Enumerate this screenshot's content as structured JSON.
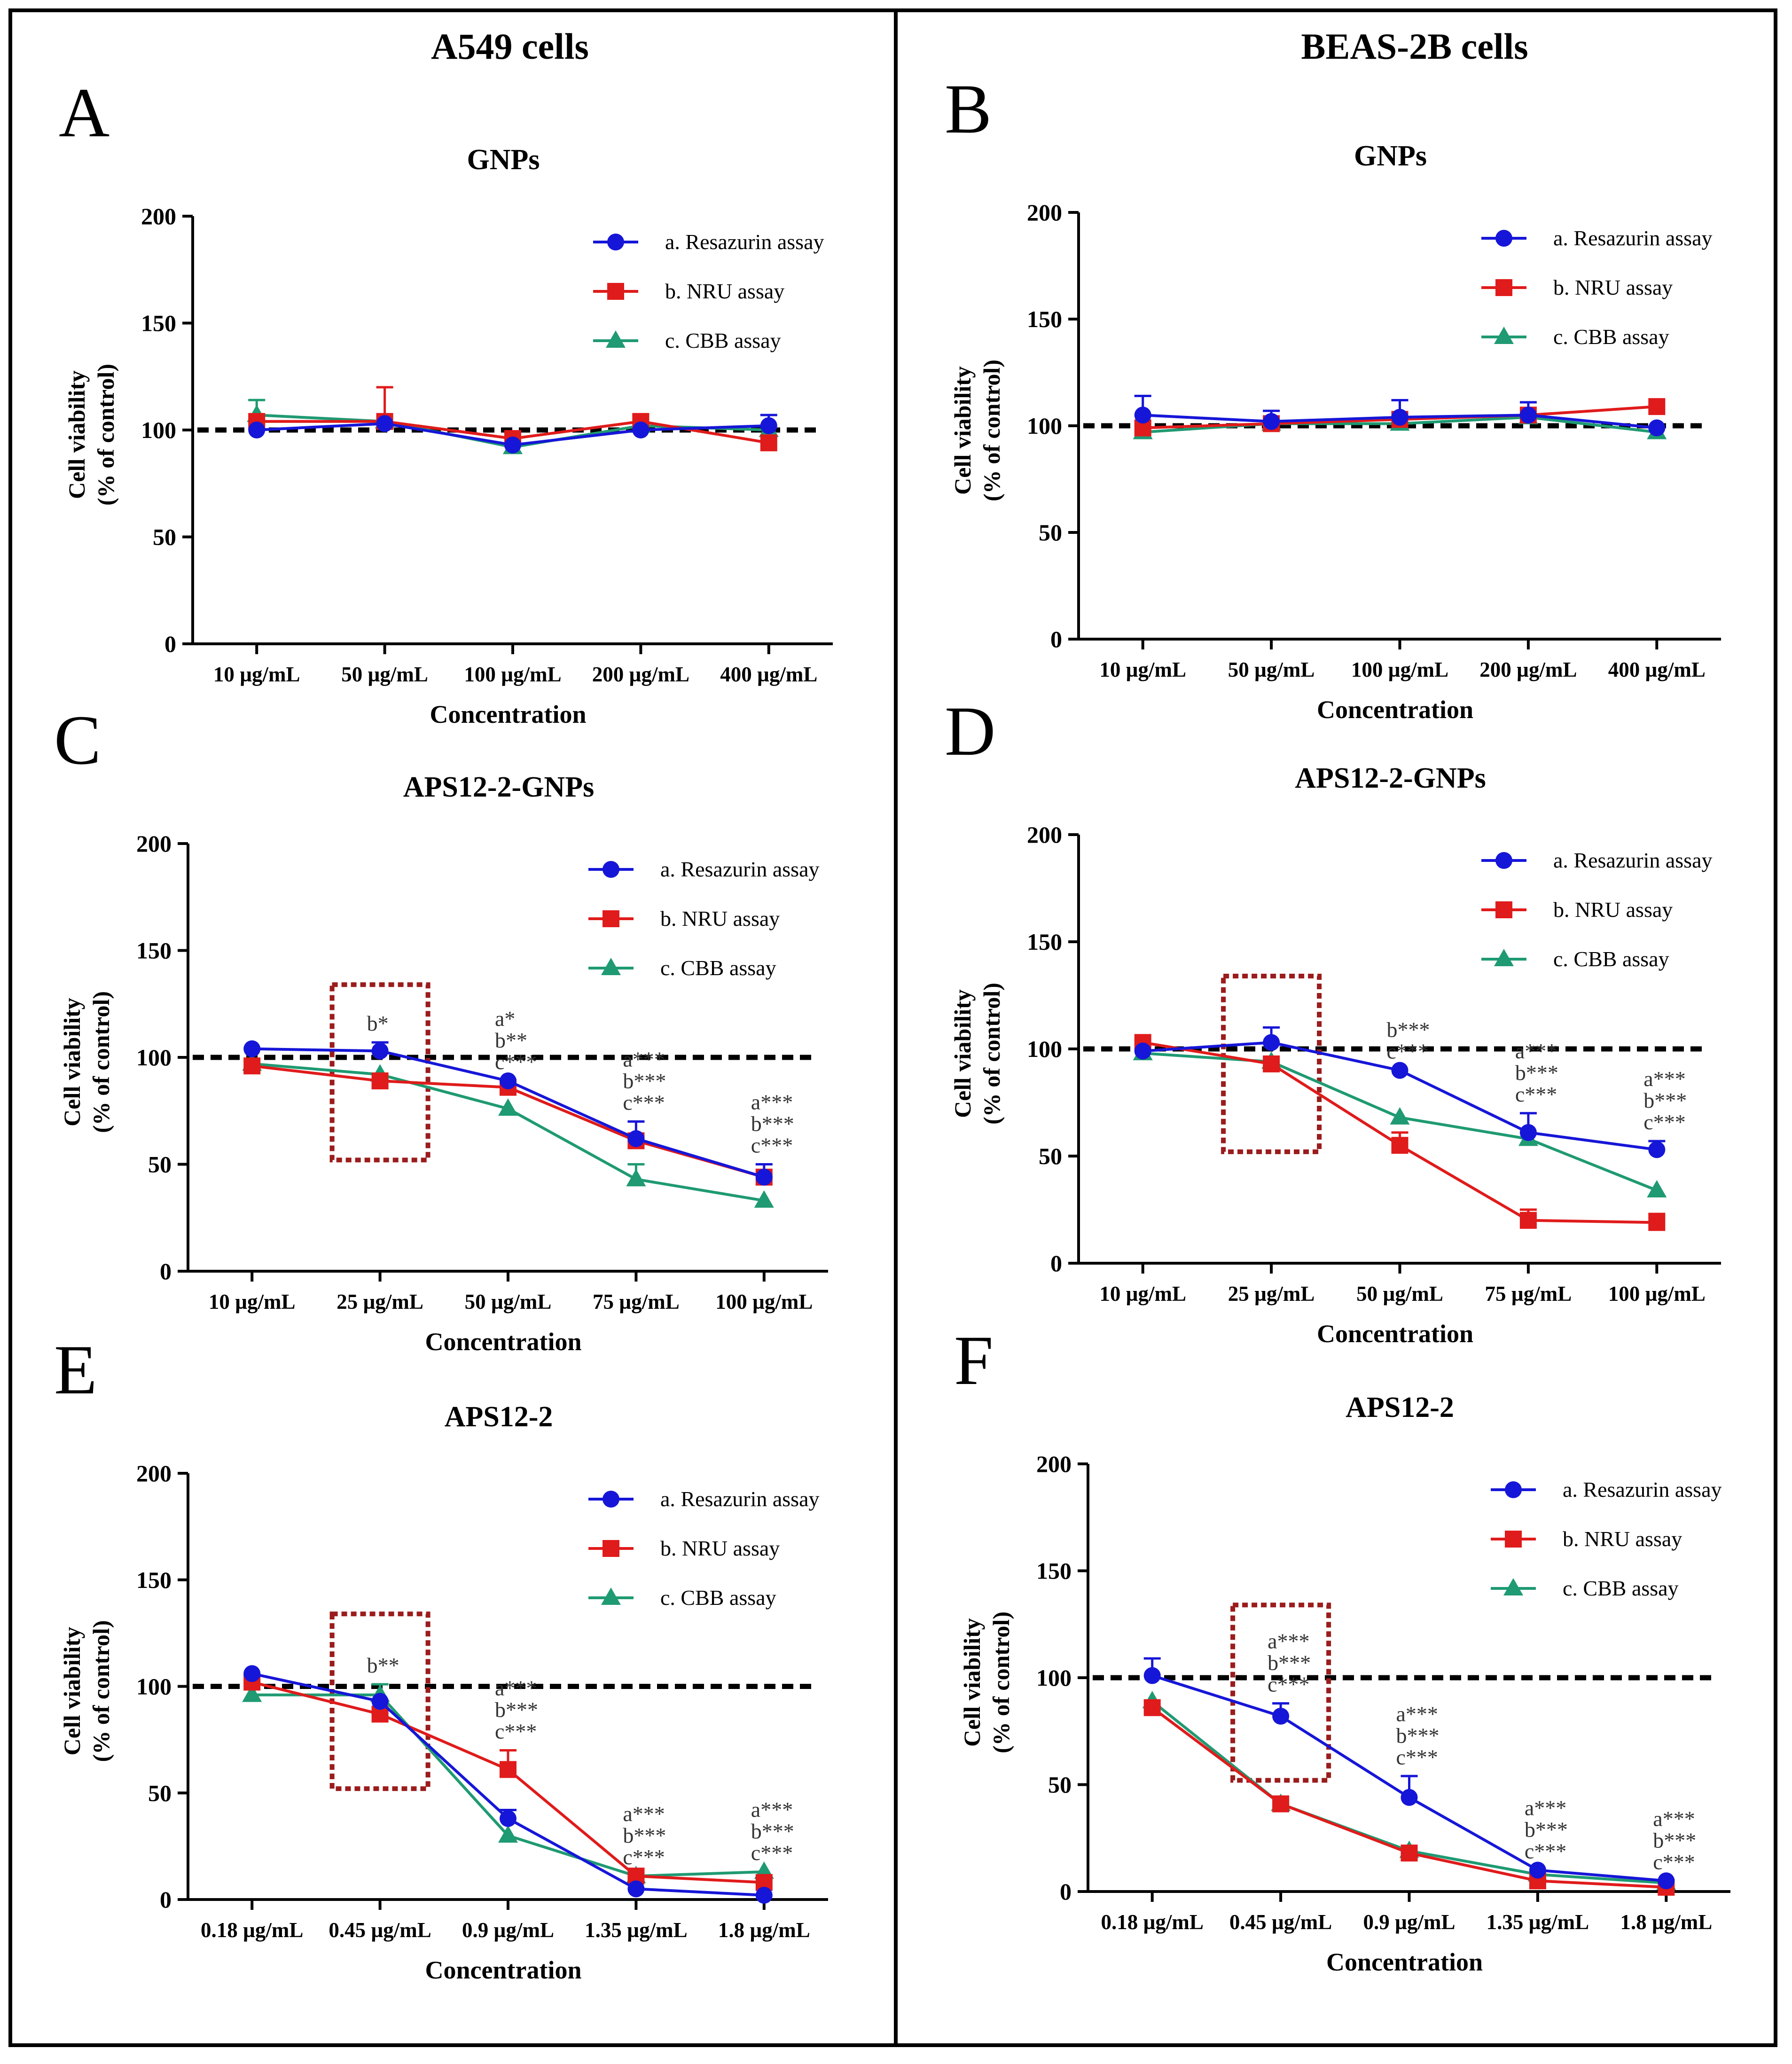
{
  "columns": [
    "A549 cells",
    "BEAS-2B cells"
  ],
  "colors": {
    "resazurin": "#1616d8",
    "nru": "#e01b1b",
    "cbb": "#1f9a72",
    "reference": "#000000",
    "box": "#9b1c1c",
    "frame": "#000000"
  },
  "chart_data": [
    {
      "panel": "A",
      "type": "line",
      "title": "GNPs",
      "xlabel": "Concentration",
      "ylabel": [
        "Cell viability",
        "(% of control)"
      ],
      "ylim": [
        0,
        200
      ],
      "yticks": [
        0,
        50,
        100,
        150,
        200
      ],
      "categories": [
        "10 µg/mL",
        "50 µg/mL",
        "100 µg/mL",
        "200 µg/mL",
        "400 µg/mL"
      ],
      "reference_line": 100,
      "series": [
        {
          "name": "a. Resazurin assay",
          "key": "resazurin",
          "marker": "circle",
          "values": [
            100,
            103,
            93,
            100,
            102
          ],
          "errors": [
            0,
            0,
            0,
            0,
            5
          ]
        },
        {
          "name": "b. NRU assay",
          "key": "nru",
          "marker": "square",
          "values": [
            104,
            104,
            96,
            104,
            94
          ],
          "errors": [
            0,
            16,
            0,
            3,
            0
          ]
        },
        {
          "name": "c. CBB assay",
          "key": "cbb",
          "marker": "triangle",
          "values": [
            107,
            104,
            92,
            102,
            100
          ],
          "errors": [
            7,
            0,
            0,
            0,
            0
          ]
        }
      ],
      "annotations": []
    },
    {
      "panel": "B",
      "type": "line",
      "title": "GNPs",
      "xlabel": "Concentration",
      "ylabel": [
        "Cell viability",
        "(% of control)"
      ],
      "ylim": [
        0,
        200
      ],
      "yticks": [
        0,
        50,
        100,
        150,
        200
      ],
      "categories": [
        "10 µg/mL",
        "50 µg/mL",
        "100 µg/mL",
        "200 µg/mL",
        "400 µg/mL"
      ],
      "reference_line": 100,
      "series": [
        {
          "name": "a. Resazurin assay",
          "key": "resazurin",
          "marker": "circle",
          "values": [
            105,
            102,
            104,
            105,
            99
          ],
          "errors": [
            9,
            5,
            8,
            6,
            0
          ]
        },
        {
          "name": "b. NRU assay",
          "key": "nru",
          "marker": "square",
          "values": [
            99,
            101,
            103,
            105,
            109
          ],
          "errors": [
            0,
            0,
            0,
            0,
            0
          ]
        },
        {
          "name": "c. CBB assay",
          "key": "cbb",
          "marker": "triangle",
          "values": [
            97,
            101,
            101,
            104,
            97
          ],
          "errors": [
            0,
            0,
            0,
            0,
            0
          ]
        }
      ],
      "annotations": []
    },
    {
      "panel": "C",
      "type": "line",
      "title": "APS12-2-GNPs",
      "xlabel": "Concentration",
      "ylabel": [
        "Cell viability",
        "(% of control)"
      ],
      "ylim": [
        0,
        200
      ],
      "yticks": [
        0,
        50,
        100,
        150,
        200
      ],
      "categories": [
        "10 µg/mL",
        "25 µg/mL",
        "50 µg/mL",
        "75 µg/mL",
        "100 µg/mL"
      ],
      "reference_line": 100,
      "highlight_index": 1,
      "series": [
        {
          "name": "a. Resazurin assay",
          "key": "resazurin",
          "marker": "circle",
          "values": [
            104,
            103,
            89,
            62,
            44
          ],
          "errors": [
            0,
            4,
            0,
            8,
            6
          ]
        },
        {
          "name": "b. NRU assay",
          "key": "nru",
          "marker": "square",
          "values": [
            96,
            89,
            86,
            61,
            44
          ],
          "errors": [
            0,
            0,
            0,
            0,
            0
          ]
        },
        {
          "name": "c. CBB assay",
          "key": "cbb",
          "marker": "triangle",
          "values": [
            97,
            92,
            76,
            43,
            33
          ],
          "errors": [
            0,
            0,
            0,
            7,
            0
          ]
        }
      ],
      "annotations": [
        {
          "index": 1,
          "lines": [
            "b*"
          ]
        },
        {
          "index": 2,
          "lines": [
            "a*",
            "b**",
            "c***"
          ]
        },
        {
          "index": 3,
          "lines": [
            "a***",
            "b***",
            "c***"
          ]
        },
        {
          "index": 4,
          "lines": [
            "a***",
            "b***",
            "c***"
          ]
        }
      ]
    },
    {
      "panel": "D",
      "type": "line",
      "title": "APS12-2-GNPs",
      "xlabel": "Concentration",
      "ylabel": [
        "Cell viability",
        "(% of control)"
      ],
      "ylim": [
        0,
        200
      ],
      "yticks": [
        0,
        50,
        100,
        150,
        200
      ],
      "categories": [
        "10 µg/mL",
        "25 µg/mL",
        "50 µg/mL",
        "75 µg/mL",
        "100 µg/mL"
      ],
      "reference_line": 100,
      "highlight_index": 1,
      "series": [
        {
          "name": "a. Resazurin assay",
          "key": "resazurin",
          "marker": "circle",
          "values": [
            99,
            103,
            90,
            61,
            53
          ],
          "errors": [
            0,
            7,
            0,
            9,
            4
          ]
        },
        {
          "name": "b. NRU assay",
          "key": "nru",
          "marker": "square",
          "values": [
            103,
            93,
            55,
            20,
            19
          ],
          "errors": [
            0,
            0,
            6,
            5,
            4
          ]
        },
        {
          "name": "c. CBB assay",
          "key": "cbb",
          "marker": "triangle",
          "values": [
            98,
            94,
            68,
            58,
            34
          ],
          "errors": [
            0,
            0,
            0,
            0,
            0
          ]
        }
      ],
      "annotations": [
        {
          "index": 2,
          "lines": [
            "b***",
            "c***"
          ]
        },
        {
          "index": 3,
          "lines": [
            "a***",
            "b***",
            "c***"
          ]
        },
        {
          "index": 4,
          "lines": [
            "a***",
            "b***",
            "c***"
          ]
        }
      ]
    },
    {
      "panel": "E",
      "type": "line",
      "title": "APS12-2",
      "xlabel": "Concentration",
      "ylabel": [
        "Cell viability",
        "(% of control)"
      ],
      "ylim": [
        0,
        200
      ],
      "yticks": [
        0,
        50,
        100,
        150,
        200
      ],
      "categories": [
        "0.18 µg/mL",
        "0.45 µg/mL",
        "0.9 µg/mL",
        "1.35 µg/mL",
        "1.8 µg/mL"
      ],
      "reference_line": 100,
      "highlight_index": 1,
      "series": [
        {
          "name": "a. Resazurin assay",
          "key": "resazurin",
          "marker": "circle",
          "values": [
            106,
            93,
            38,
            5,
            2
          ],
          "errors": [
            0,
            0,
            4,
            0,
            0
          ]
        },
        {
          "name": "b. NRU assay",
          "key": "nru",
          "marker": "square",
          "values": [
            102,
            87,
            61,
            11,
            8
          ],
          "errors": [
            0,
            0,
            9,
            0,
            0
          ]
        },
        {
          "name": "c. CBB assay",
          "key": "cbb",
          "marker": "triangle",
          "values": [
            96,
            96,
            30,
            11,
            13
          ],
          "errors": [
            0,
            5,
            0,
            0,
            0
          ]
        }
      ],
      "annotations": [
        {
          "index": 1,
          "lines": [
            "b**"
          ]
        },
        {
          "index": 2,
          "lines": [
            "a***",
            "b***",
            "c***"
          ]
        },
        {
          "index": 3,
          "lines": [
            "a***",
            "b***",
            "c***"
          ]
        },
        {
          "index": 4,
          "lines": [
            "a***",
            "b***",
            "c***"
          ]
        }
      ]
    },
    {
      "panel": "F",
      "type": "line",
      "title": "APS12-2",
      "xlabel": "Concentration",
      "ylabel": [
        "Cell viability",
        "(% of control)"
      ],
      "ylim": [
        0,
        200
      ],
      "yticks": [
        0,
        50,
        100,
        150,
        200
      ],
      "categories": [
        "0.18 µg/mL",
        "0.45 µg/mL",
        "0.9 µg/mL",
        "1.35 µg/mL",
        "1.8 µg/mL"
      ],
      "reference_line": 100,
      "highlight_index": 1,
      "series": [
        {
          "name": "a. Resazurin assay",
          "key": "resazurin",
          "marker": "circle",
          "values": [
            101,
            82,
            44,
            10,
            5
          ],
          "errors": [
            8,
            6,
            10,
            0,
            0
          ]
        },
        {
          "name": "b. NRU assay",
          "key": "nru",
          "marker": "square",
          "values": [
            86,
            41,
            18,
            5,
            2
          ],
          "errors": [
            0,
            0,
            0,
            0,
            0
          ]
        },
        {
          "name": "c. CBB assay",
          "key": "cbb",
          "marker": "triangle",
          "values": [
            89,
            41,
            19,
            8,
            4
          ],
          "errors": [
            0,
            0,
            0,
            0,
            0
          ]
        }
      ],
      "annotations": [
        {
          "index": 1,
          "lines": [
            "a***",
            "b***",
            "c***"
          ]
        },
        {
          "index": 2,
          "lines": [
            "a***",
            "b***",
            "c***"
          ]
        },
        {
          "index": 3,
          "lines": [
            "a***",
            "b***",
            "c***"
          ]
        },
        {
          "index": 4,
          "lines": [
            "a***",
            "b***",
            "c***"
          ]
        }
      ]
    }
  ]
}
